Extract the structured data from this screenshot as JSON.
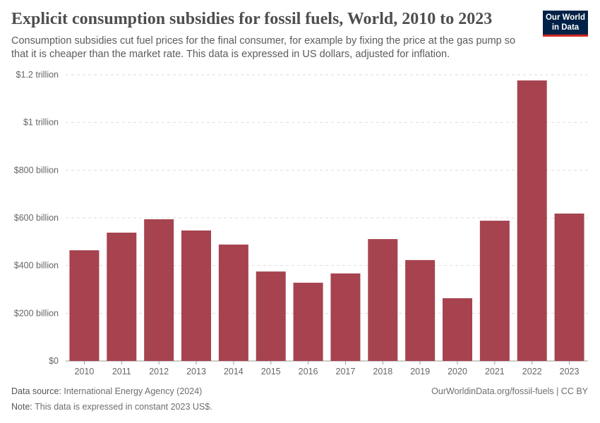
{
  "title": "Explicit consumption subsidies for fossil fuels, World, 2010 to 2023",
  "subtitle": "Consumption subsidies cut fuel prices for the final consumer, for example by fixing the price at the gas pump so that it is cheaper than the market rate. This data is expressed in US dollars, adjusted for inflation.",
  "logo": {
    "line1": "Our World",
    "line2": "in Data"
  },
  "footer": {
    "source_label": "Data source:",
    "source": "International Energy Agency (2024)",
    "note_label": "Note:",
    "note": "This data is expressed in constant 2023 US$.",
    "url": "OurWorldinData.org/fossil-fuels | CC BY"
  },
  "chart_data": {
    "type": "bar",
    "categories": [
      "2010",
      "2011",
      "2012",
      "2013",
      "2014",
      "2015",
      "2016",
      "2017",
      "2018",
      "2019",
      "2020",
      "2021",
      "2022",
      "2023"
    ],
    "values": [
      464,
      538,
      594,
      547,
      488,
      375,
      328,
      367,
      511,
      423,
      263,
      588,
      1176,
      618
    ],
    "unit": "billion US$",
    "ylim": [
      0,
      1200
    ],
    "yticks": [
      0,
      200,
      400,
      600,
      800,
      1000,
      1200
    ],
    "ytick_labels": [
      "$0",
      "$200 billion",
      "$400 billion",
      "$600 billion",
      "$800 billion",
      "$1 trillion",
      "$1.2 trillion"
    ],
    "grid": true,
    "bar_color": "#a6434f"
  }
}
